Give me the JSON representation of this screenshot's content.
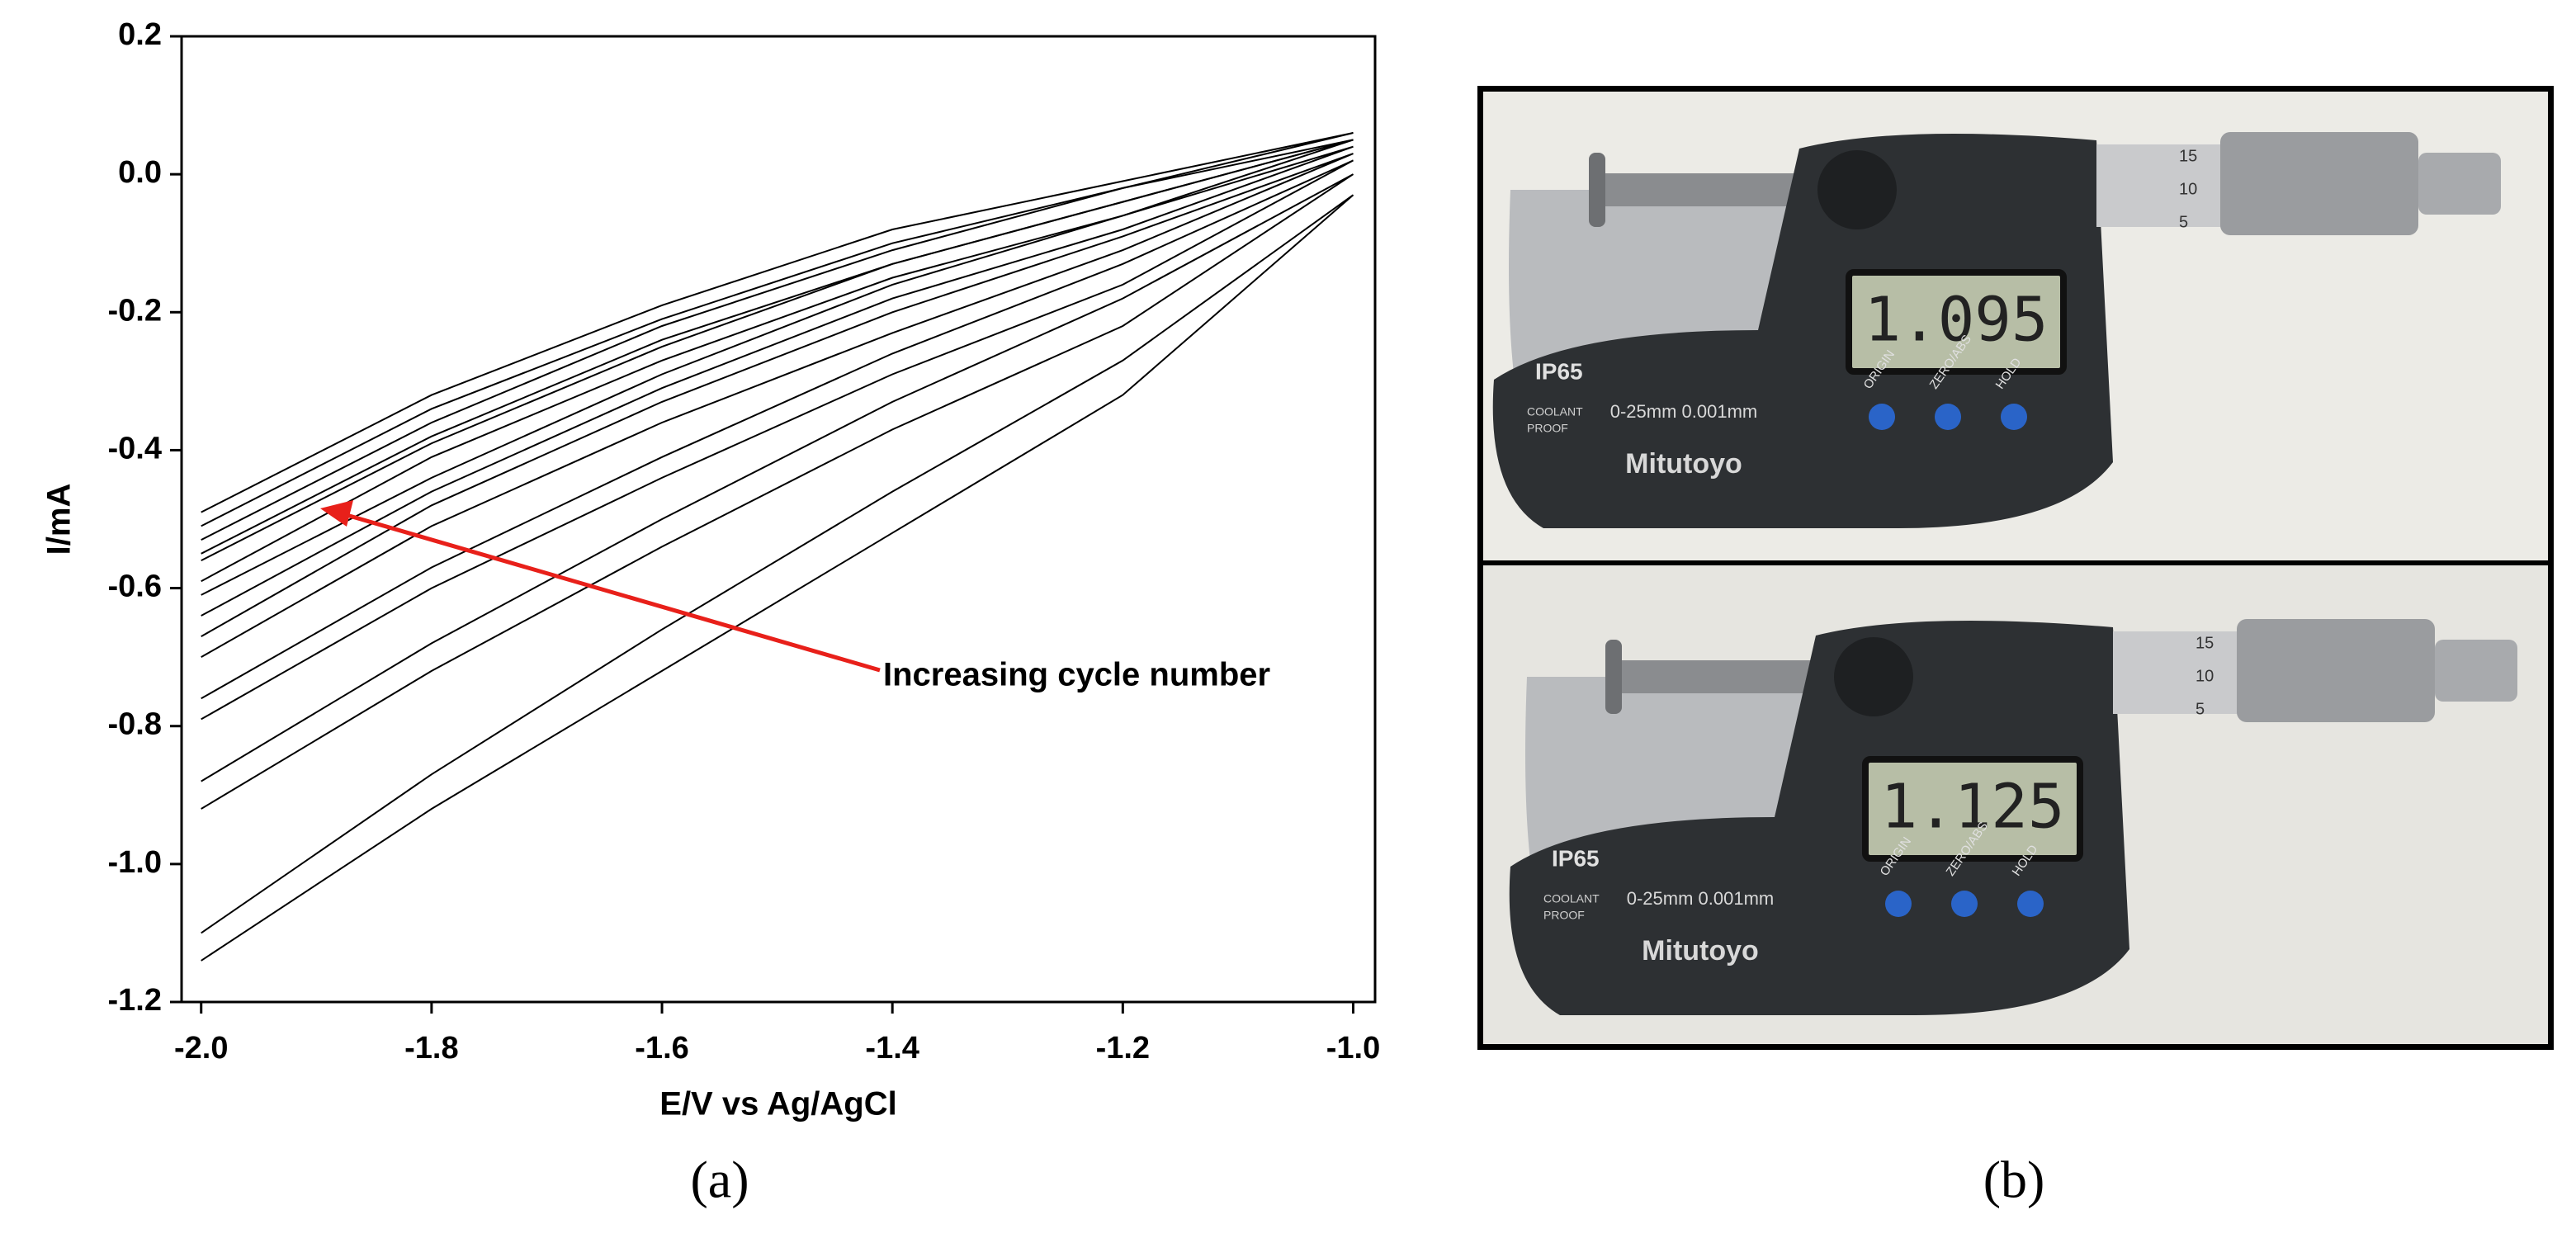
{
  "chart_data": {
    "type": "line",
    "x_label": "E/V vs Ag/AgCl",
    "y_label": "I/mA",
    "x": [
      -2.0,
      -1.8,
      -1.6,
      -1.4,
      -1.2,
      -1.0,
      -1.2,
      -1.4,
      -1.6,
      -1.8,
      -2.0
    ],
    "series": [
      {
        "values": [
          -1.14,
          -0.92,
          -0.72,
          -0.52,
          -0.32,
          -0.03,
          -0.27,
          -0.46,
          -0.66,
          -0.87,
          -1.1
        ]
      },
      {
        "values": [
          -0.92,
          -0.72,
          -0.54,
          -0.37,
          -0.22,
          0.0,
          -0.18,
          -0.33,
          -0.5,
          -0.68,
          -0.88
        ]
      },
      {
        "values": [
          -0.79,
          -0.6,
          -0.44,
          -0.29,
          -0.16,
          0.02,
          -0.13,
          -0.26,
          -0.41,
          -0.57,
          -0.76
        ]
      },
      {
        "values": [
          -0.7,
          -0.51,
          -0.36,
          -0.23,
          -0.11,
          0.03,
          -0.09,
          -0.2,
          -0.33,
          -0.48,
          -0.67
        ]
      },
      {
        "values": [
          -0.64,
          -0.46,
          -0.31,
          -0.18,
          -0.08,
          0.04,
          -0.06,
          -0.16,
          -0.29,
          -0.44,
          -0.61
        ]
      },
      {
        "values": [
          -0.59,
          -0.41,
          -0.27,
          -0.15,
          -0.06,
          0.05,
          -0.04,
          -0.13,
          -0.25,
          -0.39,
          -0.56
        ]
      },
      {
        "values": [
          -0.55,
          -0.38,
          -0.24,
          -0.13,
          -0.04,
          0.05,
          -0.02,
          -0.11,
          -0.22,
          -0.36,
          -0.53
        ]
      },
      {
        "values": [
          -0.51,
          -0.34,
          -0.21,
          -0.1,
          -0.02,
          0.06,
          -0.01,
          -0.08,
          -0.19,
          -0.32,
          -0.49
        ]
      }
    ],
    "color": "#000000",
    "xlim": [
      -2.017,
      -0.981
    ],
    "xticks": [
      {
        "value": -2.0,
        "label": "-2.0"
      },
      -1.8,
      -1.6,
      -1.4,
      -1.2,
      {
        "value": -1.0,
        "label": "-1.0"
      }
    ],
    "ylim": [
      -1.2,
      0.2
    ],
    "yticks": [
      -1.2,
      {
        "value": -1.0,
        "label": "-1.0"
      },
      -0.8,
      -0.6,
      -0.4,
      -0.2,
      {
        "value": 0.0,
        "label": "0.0"
      },
      0.2
    ],
    "annotation": {
      "text": "Increasing cycle number",
      "color": "#e8201a"
    },
    "panel_label": "(a)"
  },
  "photo": {
    "panel_label": "(b)",
    "panels": [
      {
        "reading": "1.095",
        "brand": "Mitutoyo",
        "range": "0-25mm 0.001mm",
        "rating": "IP65",
        "coolant": "COOLANT",
        "proof": "PROOF",
        "buttons": [
          "ORIGIN",
          "ZERO/ABS",
          "HOLD"
        ],
        "scale": [
          "15",
          "10",
          "5"
        ]
      },
      {
        "reading": "1.125",
        "brand": "Mitutoyo",
        "range": "0-25mm 0.001mm",
        "rating": "IP65",
        "coolant": "COOLANT",
        "proof": "PROOF",
        "buttons": [
          "ORIGIN",
          "ZERO/ABS",
          "HOLD"
        ],
        "scale": [
          "15",
          "10",
          "5"
        ]
      }
    ]
  }
}
